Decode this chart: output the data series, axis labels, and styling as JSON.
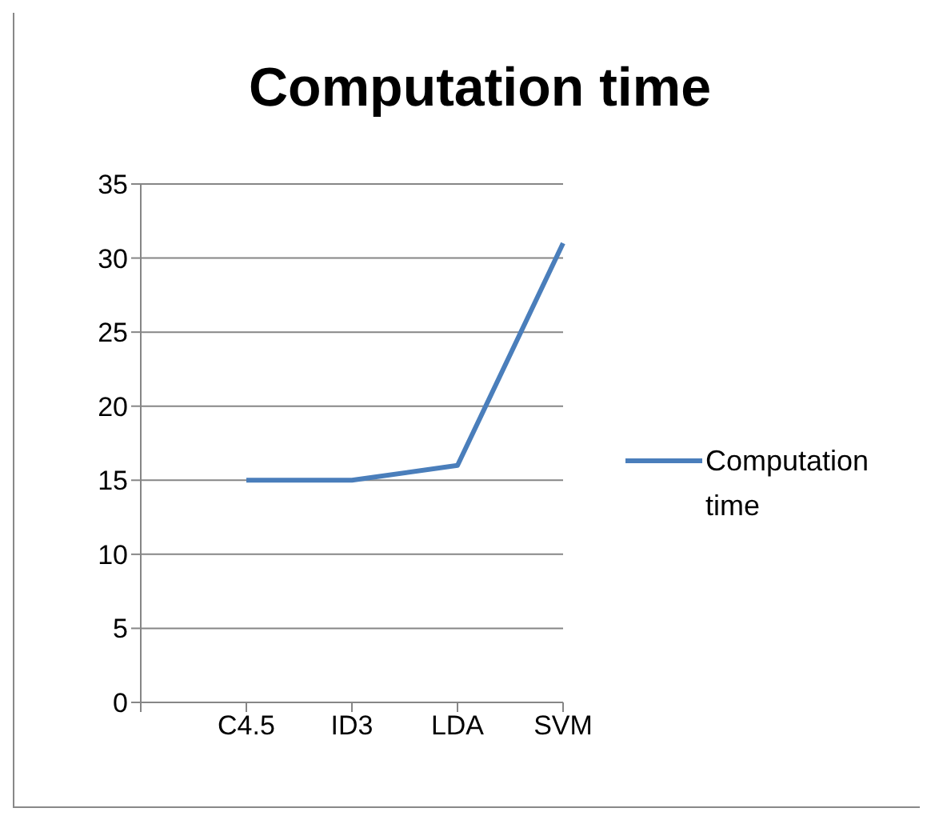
{
  "chart_data": {
    "type": "line",
    "title": "Computation time",
    "categories": [
      null,
      "C4.5",
      "ID3",
      "LDA",
      "SVM"
    ],
    "series": [
      {
        "name": "Computation time",
        "color": "#4a7ebb",
        "values": [
          null,
          15,
          15,
          16,
          31
        ]
      }
    ],
    "ylim": [
      0,
      35
    ],
    "yticks": [
      0,
      5,
      10,
      15,
      20,
      25,
      30,
      35
    ],
    "grid": "y",
    "legend": "right",
    "marker": "none",
    "line_style": "solid"
  }
}
